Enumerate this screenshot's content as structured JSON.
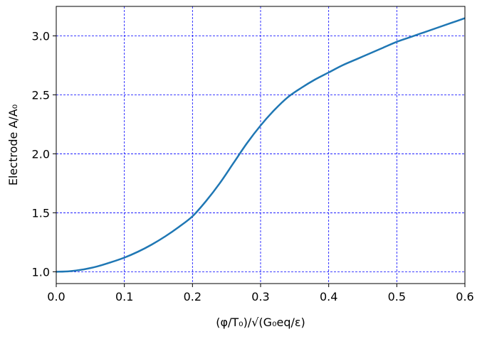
{
  "chart_data": {
    "type": "line",
    "title": "",
    "xlabel": "(φ/T₀)/√(G₀eq/ε)",
    "ylabel": "Electrode A/A₀",
    "xlim": [
      0.0,
      0.6
    ],
    "ylim": [
      0.9,
      3.25
    ],
    "xticks": [
      "0.0",
      "0.1",
      "0.2",
      "0.3",
      "0.4",
      "0.5",
      "0.6"
    ],
    "yticks": [
      "1.0",
      "1.5",
      "2.0",
      "2.5",
      "3.0"
    ],
    "grid": true,
    "grid_color": "#0000ff",
    "line_color": "#1f77b4",
    "series": [
      {
        "x": [
          0.0,
          0.02,
          0.04,
          0.06,
          0.08,
          0.1,
          0.12,
          0.14,
          0.16,
          0.18,
          0.2,
          0.22,
          0.24,
          0.26,
          0.28,
          0.3,
          0.32,
          0.34,
          0.36,
          0.38,
          0.4,
          0.42,
          0.44,
          0.46,
          0.48,
          0.5,
          0.52,
          0.54,
          0.56,
          0.58,
          0.6
        ],
        "y": [
          1.0,
          1.005,
          1.02,
          1.045,
          1.08,
          1.12,
          1.17,
          1.23,
          1.3,
          1.38,
          1.47,
          1.6,
          1.75,
          1.92,
          2.09,
          2.24,
          2.37,
          2.48,
          2.56,
          2.63,
          2.69,
          2.75,
          2.8,
          2.85,
          2.9,
          2.95,
          2.99,
          3.03,
          3.07,
          3.11,
          3.15
        ]
      }
    ]
  }
}
